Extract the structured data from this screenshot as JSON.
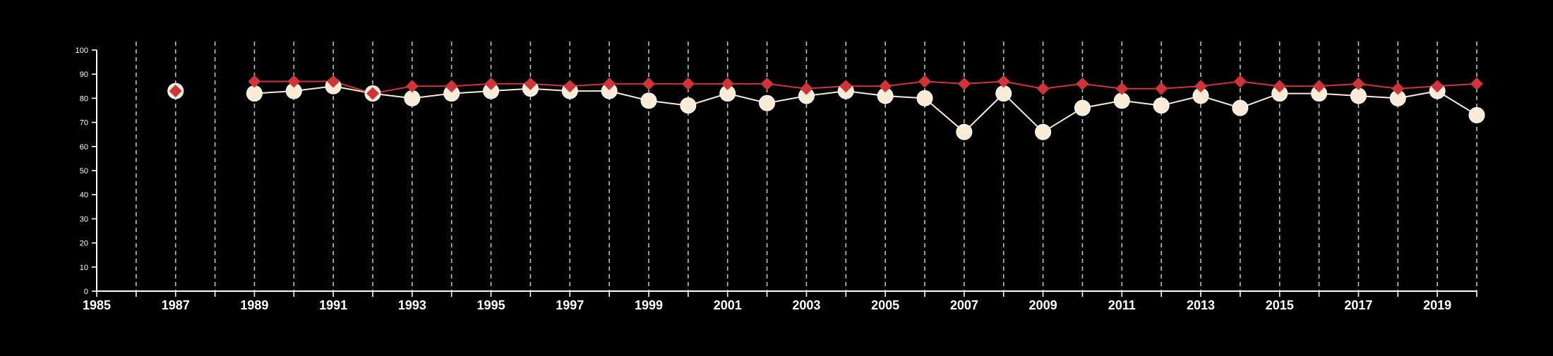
{
  "chart_data": {
    "type": "line",
    "title": "",
    "xlabel": "",
    "ylabel": "",
    "xlim": [
      1985,
      2020
    ],
    "ylim": [
      0,
      100
    ],
    "x_ticks": [
      1985,
      1987,
      1989,
      1991,
      1993,
      1995,
      1997,
      1999,
      2001,
      2003,
      2005,
      2007,
      2009,
      2011,
      2013,
      2015,
      2017,
      2019
    ],
    "x_tick_labels": [
      "1985",
      "1987",
      "1989",
      "1991",
      "1993",
      "1995",
      "1997",
      "1999",
      "2001",
      "2003",
      "2005",
      "2007",
      "2009",
      "2011",
      "2013",
      "2015",
      "2017",
      "2019"
    ],
    "y_ticks": [
      0,
      10,
      20,
      30,
      40,
      50,
      60,
      70,
      80,
      90,
      100
    ],
    "y_tick_labels": [
      "0",
      "10",
      "20",
      "30",
      "40",
      "50",
      "60",
      "70",
      "80",
      "90",
      "100"
    ],
    "vertical_gridlines": [
      1986,
      1987,
      1988,
      1989,
      1990,
      1991,
      1992,
      1993,
      1994,
      1995,
      1996,
      1997,
      1998,
      1999,
      2000,
      2001,
      2002,
      2003,
      2004,
      2005,
      2006,
      2007,
      2008,
      2009,
      2010,
      2011,
      2012,
      2013,
      2014,
      2015,
      2016,
      2017,
      2018,
      2019,
      2020
    ],
    "grid": "vertical dashed",
    "legend": "none",
    "x": [
      1987,
      1989,
      1990,
      1991,
      1992,
      1993,
      1994,
      1995,
      1996,
      1997,
      1998,
      1999,
      2000,
      2001,
      2002,
      2003,
      2004,
      2005,
      2006,
      2007,
      2008,
      2009,
      2010,
      2011,
      2012,
      2013,
      2014,
      2015,
      2016,
      2017,
      2018,
      2019,
      2020
    ],
    "series": [
      {
        "marker": "circle",
        "color": "#FAEBD7",
        "values": [
          83,
          82,
          83,
          85,
          82,
          80,
          82,
          83,
          84,
          83,
          83,
          79,
          77,
          82,
          78,
          81,
          83,
          81,
          80,
          66,
          82,
          66,
          76,
          79,
          77,
          81,
          76,
          82,
          82,
          81,
          80,
          83,
          73
        ]
      },
      {
        "marker": "diamond",
        "color": "#D13438",
        "values": [
          83,
          87,
          87,
          87,
          82,
          85,
          85,
          86,
          86,
          85,
          86,
          86,
          86,
          86,
          86,
          84,
          85,
          85,
          87,
          86,
          87,
          84,
          86,
          84,
          84,
          85,
          87,
          85,
          85,
          86,
          84,
          85,
          86
        ]
      }
    ],
    "colors": {
      "background": "#000000",
      "axis": "#FFFFFF",
      "grid": "#BFBFBF",
      "text": "#FFFFFF"
    }
  }
}
